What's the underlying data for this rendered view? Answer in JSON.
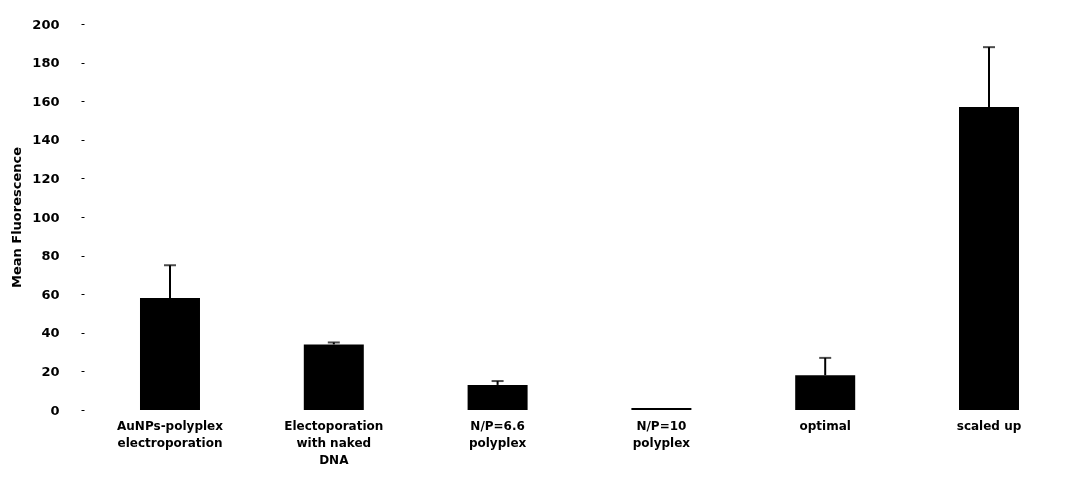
{
  "chart_data": {
    "type": "bar",
    "ylabel": "Mean Fluorescence",
    "categories": [
      "AuNPs-polyplex electroporation",
      "Electoporation with naked DNA",
      "N/P=6.6 polyplex",
      "N/P=10 polyplex",
      "optimal",
      "scaled up"
    ],
    "values": [
      58,
      34,
      13,
      1,
      18,
      157
    ],
    "errors": [
      17,
      1,
      2,
      null,
      9,
      31
    ],
    "color": "#000000",
    "ylim": [
      0,
      200
    ],
    "yticks": [
      0,
      20,
      40,
      60,
      80,
      100,
      120,
      140,
      160,
      180,
      200
    ],
    "grid": false
  }
}
